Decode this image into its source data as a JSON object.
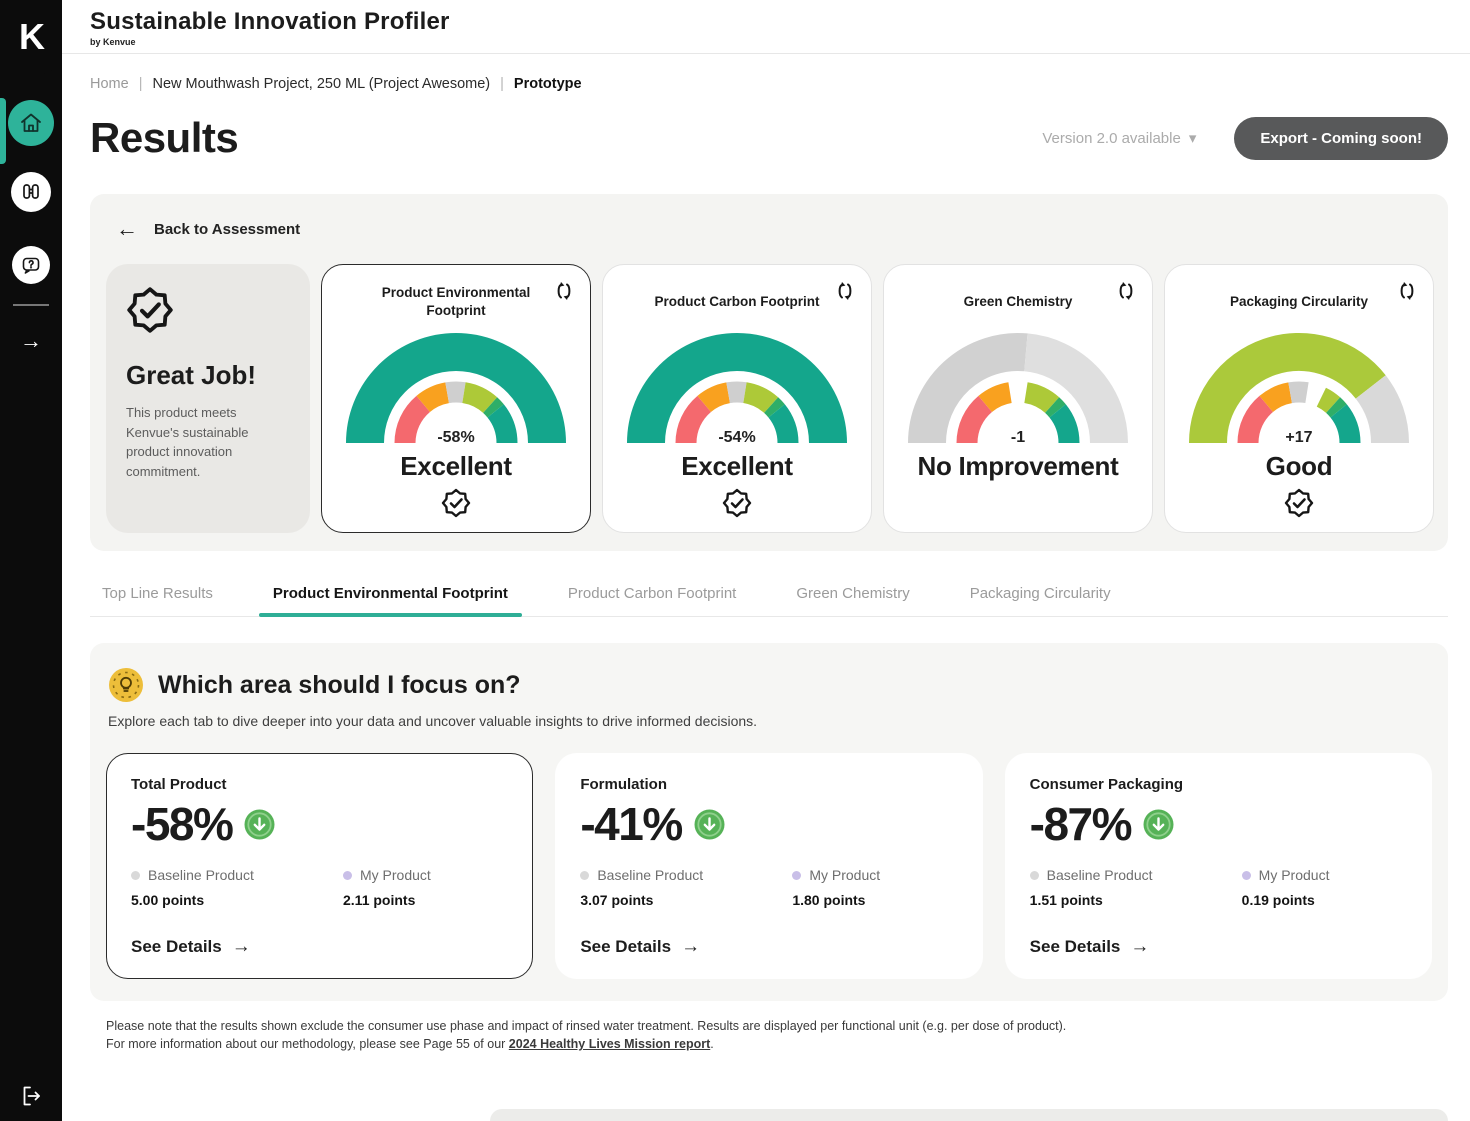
{
  "app": {
    "title": "Sustainable Innovation Profiler",
    "by_label": "by",
    "brand": "Kenvue",
    "logo_letter": "K"
  },
  "sidebar": {
    "items": [
      {
        "icon": "home",
        "active": true
      },
      {
        "icon": "binoculars",
        "active": false
      },
      {
        "icon": "help-chat",
        "active": false
      },
      {
        "icon": "arrow-right",
        "active": false
      }
    ],
    "footer_icon": "logout"
  },
  "breadcrumb": {
    "home": "Home",
    "sep1": "|",
    "project": "New Mouthwash Project, 250 ML (Project Awesome)",
    "sep2": "|",
    "current": "Prototype"
  },
  "header": {
    "page_title": "Results",
    "version_label": "Version 2.0 available",
    "version_caret": "▾",
    "export_label": "Export - Coming soon!"
  },
  "assessment": {
    "back_arrow": "←",
    "back_label": "Back to Assessment",
    "summary": {
      "title": "Great Job!",
      "description": "This product meets Kenvue's sustainable product innovation commitment."
    }
  },
  "chart_data": [
    {
      "type": "gauge",
      "title": "Product Environmental Footprint",
      "value": "-58%",
      "value_num": -58,
      "unit": "%",
      "rating": "Excellent",
      "badge": true,
      "scale": "semicircle, 0deg = left end, 180deg = right end",
      "outer_segments": [
        {
          "from": 0,
          "to": 180,
          "color": "#14A68C"
        }
      ],
      "inner_segments": [
        {
          "from": 0,
          "to": 50,
          "color": "#F4696E"
        },
        {
          "from": 50,
          "to": 80,
          "color": "#F9A11F"
        },
        {
          "from": 80,
          "to": 99,
          "color": "#CFCFCF"
        },
        {
          "from": 99,
          "to": 132,
          "color": "#ADC938"
        },
        {
          "from": 132,
          "to": 141,
          "color": "#2FAE68"
        },
        {
          "from": 141,
          "to": 180,
          "color": "#14A68C"
        }
      ]
    },
    {
      "type": "gauge",
      "title": "Product Carbon Footprint",
      "value": "-54%",
      "value_num": -54,
      "unit": "%",
      "rating": "Excellent",
      "badge": true,
      "scale": "semicircle, 0deg = left end, 180deg = right end",
      "outer_segments": [
        {
          "from": 0,
          "to": 180,
          "color": "#14A68C"
        }
      ],
      "inner_segments": [
        {
          "from": 0,
          "to": 50,
          "color": "#F4696E"
        },
        {
          "from": 50,
          "to": 80,
          "color": "#F9A11F"
        },
        {
          "from": 80,
          "to": 99,
          "color": "#CFCFCF"
        },
        {
          "from": 99,
          "to": 132,
          "color": "#ADC938"
        },
        {
          "from": 132,
          "to": 141,
          "color": "#2FAE68"
        },
        {
          "from": 141,
          "to": 180,
          "color": "#14A68C"
        }
      ]
    },
    {
      "type": "gauge",
      "title": "Green Chemistry",
      "value": "-1",
      "value_num": -1,
      "unit": "",
      "rating": "No Improvement",
      "badge": false,
      "scale": "semicircle, 0deg = left end, 180deg = right end",
      "outer_segments": [
        {
          "from": 0,
          "to": 95,
          "color": "#D1D1D1"
        },
        {
          "from": 95,
          "to": 180,
          "color": "#DFDFDF"
        }
      ],
      "inner_segments": [
        {
          "from": 0,
          "to": 50,
          "color": "#F4696E"
        },
        {
          "from": 50,
          "to": 81,
          "color": "#F9A11F"
        },
        {
          "from": 99,
          "to": 132,
          "color": "#ADC938"
        },
        {
          "from": 132,
          "to": 141,
          "color": "#2FAE68"
        },
        {
          "from": 141,
          "to": 180,
          "color": "#14A68C"
        }
      ]
    },
    {
      "type": "gauge",
      "title": "Packaging Circularity",
      "value": "+17",
      "value_num": 17,
      "unit": "",
      "rating": "Good",
      "badge": true,
      "scale": "semicircle, 0deg = left end, 180deg = right end",
      "outer_segments": [
        {
          "from": 0,
          "to": 142,
          "color": "#ABC93B"
        },
        {
          "from": 142,
          "to": 180,
          "color": "#D9D9D9"
        }
      ],
      "inner_segments": [
        {
          "from": 0,
          "to": 50,
          "color": "#F4696E"
        },
        {
          "from": 50,
          "to": 80,
          "color": "#F9A11F"
        },
        {
          "from": 80,
          "to": 99,
          "color": "#CFCFCF"
        },
        {
          "from": 116,
          "to": 132,
          "color": "#ADC938"
        },
        {
          "from": 132,
          "to": 141,
          "color": "#2FAE68"
        },
        {
          "from": 141,
          "to": 180,
          "color": "#14A68C"
        }
      ]
    }
  ],
  "tabs": [
    {
      "label": "Top Line Results",
      "active": false
    },
    {
      "label": "Product Environmental Footprint",
      "active": true
    },
    {
      "label": "Product Carbon Footprint",
      "active": false
    },
    {
      "label": "Green Chemistry",
      "active": false
    },
    {
      "label": "Packaging Circularity",
      "active": false
    }
  ],
  "focus": {
    "title": "Which area should I focus on?",
    "subtitle": "Explore each tab to dive deeper into your data and uncover valuable insights to drive informed decisions.",
    "cards": [
      {
        "title": "Total Product",
        "value": "-58%",
        "trend_icon": "arrow-down-circle",
        "selected": true,
        "legend_baseline": "Baseline Product",
        "baseline_points": "5.00 points",
        "legend_mine": "My Product",
        "my_points": "2.11 points",
        "see_details": "See Details",
        "see_details_arrow": "→"
      },
      {
        "title": "Formulation",
        "value": "-41%",
        "trend_icon": "arrow-down-circle",
        "selected": false,
        "legend_baseline": "Baseline Product",
        "baseline_points": "3.07 points",
        "legend_mine": "My Product",
        "my_points": "1.80 points",
        "see_details": "See Details",
        "see_details_arrow": "→"
      },
      {
        "title": "Consumer Packaging",
        "value": "-87%",
        "trend_icon": "arrow-down-circle",
        "selected": false,
        "legend_baseline": "Baseline Product",
        "baseline_points": "1.51 points",
        "legend_mine": "My Product",
        "my_points": "0.19 points",
        "see_details": "See Details",
        "see_details_arrow": "→"
      }
    ]
  },
  "footnote": {
    "line1": "Please note that the results shown exclude the consumer use phase and impact of rinsed water treatment. Results are displayed per functional unit (e.g. per dose of product).",
    "line2_prefix": "For more information about our methodology, please see Page 55 of our ",
    "line2_link": "2024 Healthy Lives Mission report",
    "line2_suffix": "."
  },
  "colors": {
    "accent_teal": "#14A68C",
    "lime": "#ADC938",
    "red": "#F4696E",
    "orange": "#F9A11F",
    "neutral_gray": "#CFCFCF",
    "green": "#2FAE68",
    "export_button": "#58595A",
    "trend_green": "#56B257",
    "baseline_dot": "#D9D9D9",
    "my_product_dot": "#C9BFE8",
    "sidebar": "#0C0C0C",
    "panel_bg": "#F4F4F2"
  }
}
